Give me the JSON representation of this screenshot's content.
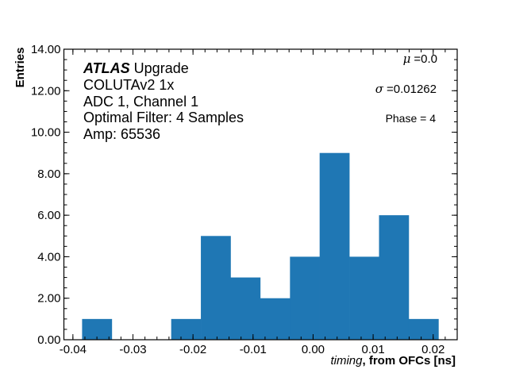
{
  "chart_data": {
    "type": "bar",
    "subtype": "histogram",
    "xlabel_italic": "timing",
    "xlabel_rest": ", from OFCs [ns]",
    "ylabel": "Entries",
    "xlim": [
      -0.0415,
      0.024
    ],
    "ylim": [
      0,
      14
    ],
    "bin_edges": [
      -0.03847,
      -0.03352,
      -0.02858,
      -0.02363,
      -0.01869,
      -0.01374,
      -0.0088,
      -0.00385,
      0.00109,
      0.00604,
      0.01098,
      0.01593,
      0.02088
    ],
    "counts": [
      1,
      0,
      0,
      1,
      5,
      3,
      2,
      4,
      9,
      4,
      6,
      1
    ],
    "x_ticks": [
      "-0.04",
      "-0.03",
      "-0.02",
      "-0.01",
      "0.00",
      "0.01",
      "0.02"
    ],
    "x_tick_values": [
      -0.04,
      -0.03,
      -0.02,
      -0.01,
      0.0,
      0.01,
      0.02
    ],
    "y_ticks": [
      "0.00",
      "2.00",
      "4.00",
      "6.00",
      "8.00",
      "10.00",
      "12.00",
      "14.00"
    ],
    "y_tick_values": [
      0,
      2,
      4,
      6,
      8,
      10,
      12,
      14
    ],
    "grid": false,
    "bar_color": "#1f77b4",
    "annotations": {
      "atlas_bold": "ATLAS",
      "atlas_rest": " Upgrade",
      "lines": [
        "COLUTAv2 1x",
        "ADC 1, Channel 1",
        "Optimal Filter: 4 Samples",
        "Amp: 65536"
      ],
      "mu_symbol": "μ",
      "mu_value": "=0.0",
      "sigma_symbol": "σ",
      "sigma_value": "=0.01262",
      "phase": "Phase = 4"
    }
  }
}
